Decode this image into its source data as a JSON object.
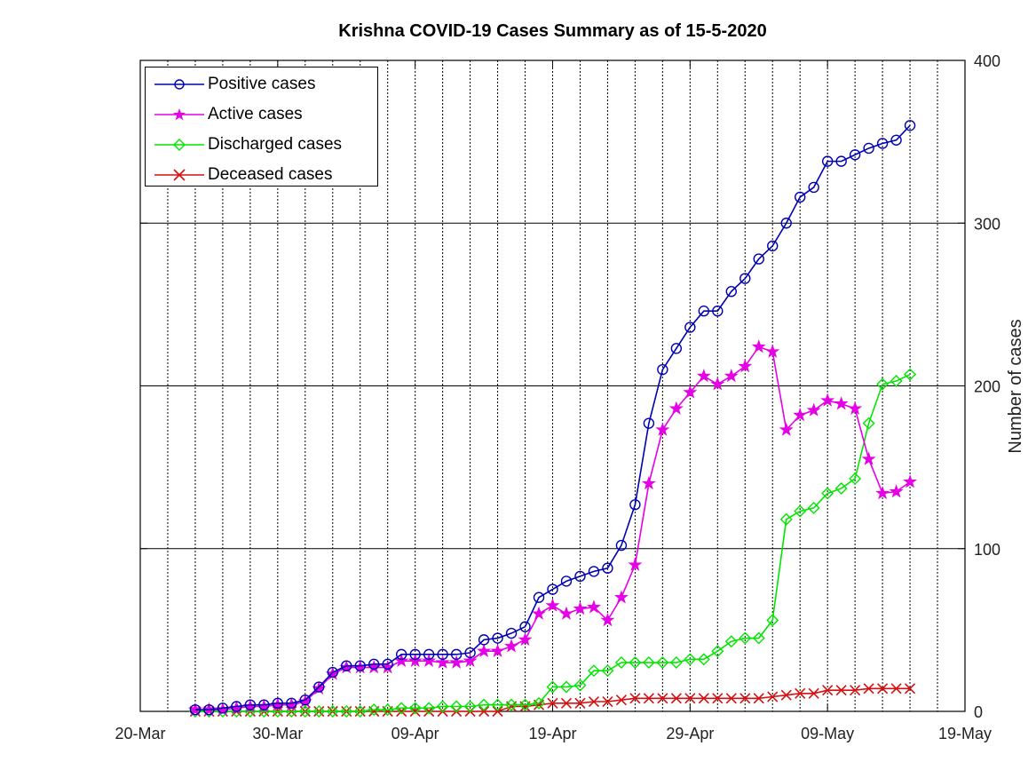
{
  "chart_data": {
    "type": "line",
    "title": "Krishna COVID-19 Cases Summary as of 15-5-2020",
    "xlabel": "",
    "ylabel": "Number of cases",
    "x_ticks": [
      "20-Mar",
      "30-Mar",
      "09-Apr",
      "19-Apr",
      "29-Apr",
      "09-May",
      "19-May"
    ],
    "y_ticks": [
      "0",
      "100",
      "200",
      "300",
      "400"
    ],
    "xlim": [
      "2020-03-20",
      "2020-05-19"
    ],
    "ylim": [
      0,
      400
    ],
    "y_axis_side": "right",
    "grid": {
      "x": "dotted",
      "y": "solid"
    },
    "legend_position": "top-left",
    "x": [
      "2020-03-24",
      "2020-03-25",
      "2020-03-26",
      "2020-03-27",
      "2020-03-28",
      "2020-03-29",
      "2020-03-30",
      "2020-03-31",
      "2020-04-01",
      "2020-04-02",
      "2020-04-03",
      "2020-04-04",
      "2020-04-05",
      "2020-04-06",
      "2020-04-07",
      "2020-04-08",
      "2020-04-09",
      "2020-04-10",
      "2020-04-11",
      "2020-04-12",
      "2020-04-13",
      "2020-04-14",
      "2020-04-15",
      "2020-04-16",
      "2020-04-17",
      "2020-04-18",
      "2020-04-19",
      "2020-04-20",
      "2020-04-21",
      "2020-04-22",
      "2020-04-23",
      "2020-04-24",
      "2020-04-25",
      "2020-04-26",
      "2020-04-27",
      "2020-04-28",
      "2020-04-29",
      "2020-04-30",
      "2020-05-01",
      "2020-05-02",
      "2020-05-03",
      "2020-05-04",
      "2020-05-05",
      "2020-05-06",
      "2020-05-07",
      "2020-05-08",
      "2020-05-09",
      "2020-05-10",
      "2020-05-11",
      "2020-05-12",
      "2020-05-13",
      "2020-05-14",
      "2020-05-15"
    ],
    "series": [
      {
        "name": "Positive cases",
        "color": "#0000b3",
        "marker": "circle",
        "values": [
          1,
          1,
          2,
          3,
          4,
          4,
          5,
          5,
          7,
          15,
          24,
          28,
          28,
          29,
          29,
          35,
          35,
          35,
          35,
          35,
          36,
          44,
          45,
          48,
          52,
          70,
          75,
          80,
          83,
          86,
          88,
          102,
          127,
          177,
          210,
          223,
          236,
          246,
          246,
          258,
          266,
          278,
          286,
          300,
          316,
          322,
          338,
          338,
          342,
          346,
          349,
          351,
          360
        ]
      },
      {
        "name": "Active cases",
        "color": "#e600e6",
        "marker": "star",
        "values": [
          1,
          1,
          1,
          2,
          3,
          3,
          4,
          4,
          6,
          14,
          23,
          27,
          27,
          27,
          27,
          31,
          31,
          31,
          30,
          30,
          31,
          37,
          37,
          40,
          44,
          60,
          65,
          60,
          63,
          64,
          56,
          70,
          90,
          140,
          173,
          186,
          196,
          206,
          201,
          206,
          212,
          224,
          221,
          173,
          182,
          185,
          191,
          189,
          186,
          155,
          134,
          135,
          141
        ]
      },
      {
        "name": "Discharged cases",
        "color": "#00e600",
        "marker": "diamond",
        "values": [
          0,
          0,
          0,
          0,
          0,
          0,
          0,
          0,
          0,
          0,
          0,
          0,
          0,
          1,
          1,
          2,
          2,
          2,
          3,
          3,
          3,
          4,
          4,
          4,
          4,
          5,
          15,
          15,
          16,
          25,
          25,
          30,
          30,
          30,
          30,
          30,
          32,
          32,
          37,
          43,
          45,
          45,
          56,
          118,
          123,
          125,
          134,
          137,
          143,
          177,
          201,
          203,
          207
        ]
      },
      {
        "name": "Deceased cases",
        "color": "#d41111",
        "marker": "x",
        "values": [
          0,
          0,
          0,
          0,
          0,
          0,
          0,
          0,
          0,
          0,
          0,
          0,
          0,
          0,
          0,
          0,
          0,
          0,
          0,
          0,
          0,
          0,
          0,
          3,
          3,
          4,
          5,
          5,
          5,
          6,
          6,
          7,
          8,
          8,
          8,
          8,
          8,
          8,
          8,
          8,
          8,
          8,
          9,
          10,
          11,
          11,
          13,
          13,
          13,
          14,
          14,
          14,
          14
        ]
      }
    ]
  }
}
